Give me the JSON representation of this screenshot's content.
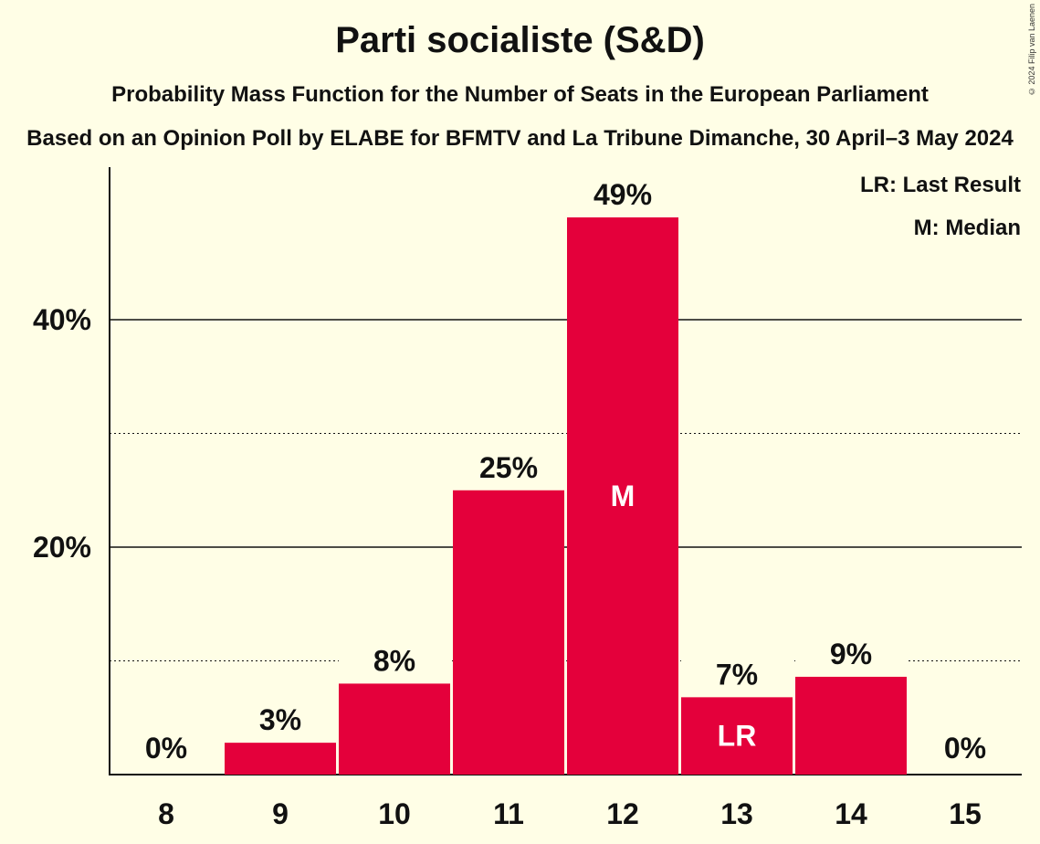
{
  "header": {
    "title": "Parti socialiste (S&D)",
    "subtitle": "Probability Mass Function for the Number of Seats in the European Parliament",
    "subtitle2": "Based on an Opinion Poll by ELABE for BFMTV and La Tribune Dimanche, 30 April–3 May 2024",
    "copyright": "© 2024 Filip van Laenen"
  },
  "legend": {
    "items": [
      "LR: Last Result",
      "M: Median"
    ]
  },
  "colors": {
    "bar": "#E4003B",
    "background": "#FFFEE6"
  },
  "chart_data": {
    "type": "bar",
    "categories": [
      "8",
      "9",
      "10",
      "11",
      "12",
      "13",
      "14",
      "15"
    ],
    "values": [
      0,
      2.8,
      8,
      25,
      49,
      6.8,
      8.6,
      0
    ],
    "data_labels": [
      "0%",
      "3%",
      "8%",
      "25%",
      "49%",
      "7%",
      "9%",
      "0%"
    ],
    "ylim": [
      0,
      53
    ],
    "yticks": [
      10,
      20,
      30,
      40
    ],
    "ytick_labels": [
      "",
      "20%",
      "",
      "40%"
    ],
    "median_category": "12",
    "median_label": "M",
    "last_result_category": "13",
    "last_result_label": "LR",
    "legend_position": "top-right",
    "grid": true
  }
}
